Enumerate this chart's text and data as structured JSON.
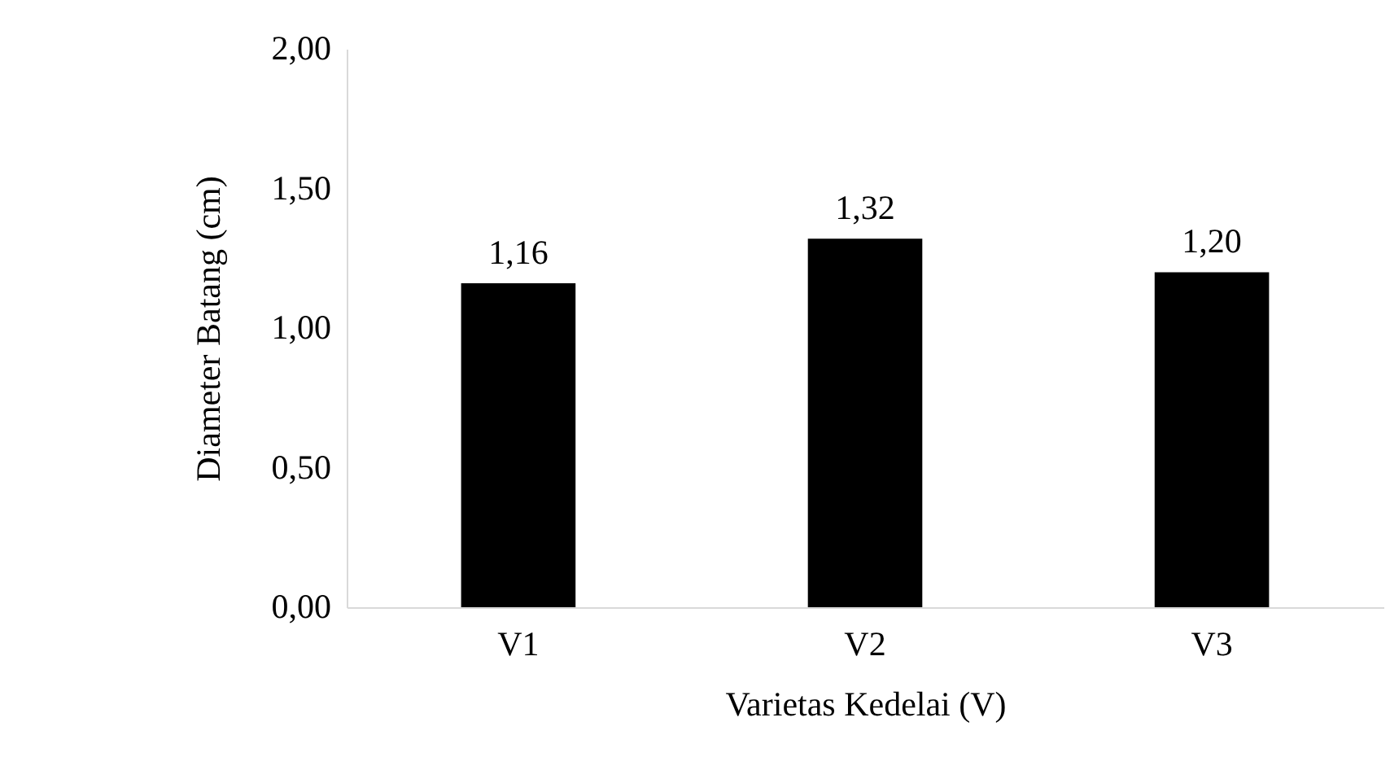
{
  "chart_data": {
    "type": "bar",
    "xlabel": "Varietas Kedelai (V)",
    "ylabel": "Diameter Batang (cm)",
    "categories": [
      "V1",
      "V2",
      "V3"
    ],
    "values": [
      1.16,
      1.32,
      1.2
    ],
    "value_labels": [
      "1,16",
      "1,32",
      "1,20"
    ],
    "color": "#000000",
    "ylim": [
      0,
      2
    ],
    "yticks": [
      {
        "value": 0,
        "label": "0,00"
      },
      {
        "value": 0.5,
        "label": "0,50"
      },
      {
        "value": 1,
        "label": "1,00"
      },
      {
        "value": 1.5,
        "label": "1,50"
      },
      {
        "value": 2,
        "label": "2,00"
      }
    ],
    "grid": false
  }
}
